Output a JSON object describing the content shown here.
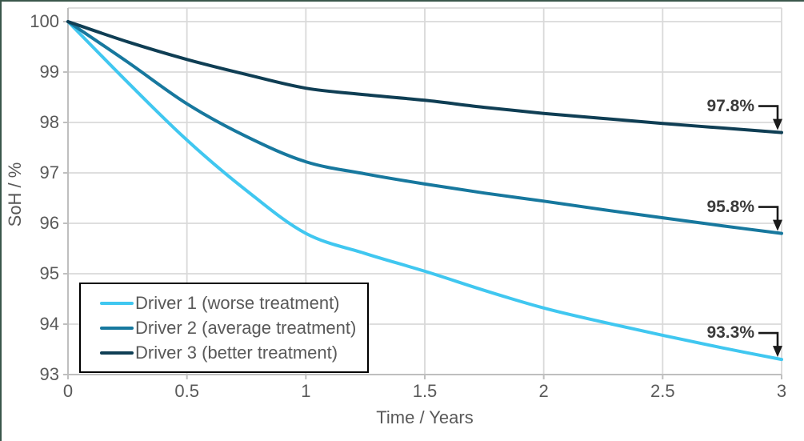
{
  "chart_data": {
    "type": "line",
    "title": "",
    "xlabel": "Time / Years",
    "ylabel": "SoH / %",
    "xlim": [
      0,
      3
    ],
    "ylim": [
      93,
      100
    ],
    "grid": true,
    "legend_position": "inside-bottom-left",
    "xticks": [
      0,
      0.5,
      1,
      1.5,
      2,
      2.5,
      3
    ],
    "xtick_labels": [
      "0",
      "0.5",
      "1",
      "1.5",
      "2",
      "2.5",
      "3"
    ],
    "yticks": [
      100,
      99,
      98,
      97,
      96,
      95,
      94,
      93
    ],
    "ytick_labels": [
      "100",
      "99",
      "98",
      "97",
      "96",
      "95",
      "94",
      "93"
    ],
    "x": [
      0,
      0.25,
      0.5,
      0.75,
      1,
      1.25,
      1.5,
      1.75,
      2,
      2.25,
      2.5,
      2.75,
      3
    ],
    "series": [
      {
        "name": "Driver 1 (worse treatment)",
        "color": "#40C7F0",
        "values": [
          100,
          98.8,
          97.65,
          96.65,
          95.8,
          95.4,
          95.05,
          94.67,
          94.32,
          94.04,
          93.78,
          93.53,
          93.3
        ],
        "end_value": 93.3,
        "end_label": "93.3%"
      },
      {
        "name": "Driver 2 (average treatment)",
        "color": "#17789E",
        "values": [
          100,
          99.2,
          98.37,
          97.72,
          97.22,
          96.98,
          96.78,
          96.6,
          96.44,
          96.27,
          96.11,
          95.95,
          95.8
        ],
        "end_value": 95.8,
        "end_label": "95.8%"
      },
      {
        "name": "Driver 3 (better treatment)",
        "color": "#0F3E54",
        "values": [
          100,
          99.6,
          99.25,
          98.95,
          98.68,
          98.55,
          98.44,
          98.3,
          98.18,
          98.08,
          97.98,
          97.89,
          97.8
        ],
        "end_value": 97.8,
        "end_label": "97.8%"
      }
    ],
    "grid_color": "#D9D9D9",
    "axis_color": "#BFBFBF",
    "tick_label_color": "#595959",
    "annotation_color": "#3B3B3B",
    "arrow_color": "#1A1A1A"
  }
}
